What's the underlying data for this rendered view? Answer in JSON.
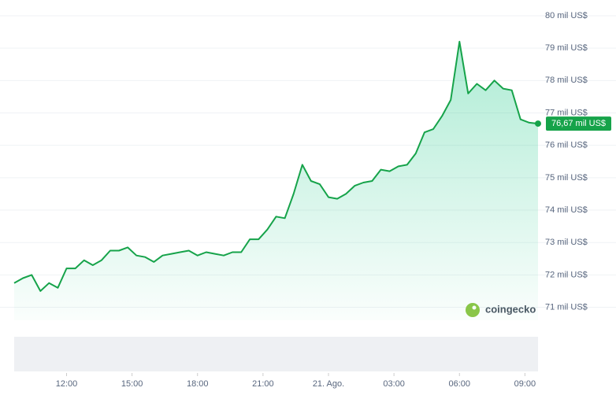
{
  "chart_data": {
    "type": "line",
    "x": [
      9.6,
      10.0,
      10.4,
      10.8,
      11.2,
      11.6,
      12.0,
      12.4,
      12.8,
      13.2,
      13.6,
      14.0,
      14.4,
      14.8,
      15.2,
      15.6,
      16.0,
      16.4,
      16.8,
      17.2,
      17.6,
      18.0,
      18.4,
      18.8,
      19.2,
      19.6,
      20.0,
      20.4,
      20.8,
      21.2,
      21.6,
      22.0,
      22.4,
      22.8,
      23.2,
      23.6,
      24.0,
      24.4,
      24.8,
      25.2,
      25.6,
      26.0,
      26.4,
      26.8,
      27.2,
      27.6,
      28.0,
      28.4,
      28.8,
      29.2,
      29.6,
      30.0,
      30.4,
      30.8,
      31.2,
      31.6,
      32.0,
      32.4,
      32.8,
      33.2,
      33.6
    ],
    "series": [
      {
        "color": "#16a34a",
        "values": [
          71.75,
          71.9,
          72.0,
          71.5,
          71.75,
          71.6,
          72.2,
          72.2,
          72.45,
          72.3,
          72.45,
          72.75,
          72.75,
          72.85,
          72.6,
          72.55,
          72.4,
          72.6,
          72.65,
          72.7,
          72.75,
          72.6,
          72.7,
          72.65,
          72.6,
          72.7,
          72.7,
          73.1,
          73.1,
          73.4,
          73.8,
          73.75,
          74.5,
          75.4,
          74.9,
          74.8,
          74.4,
          74.35,
          74.5,
          74.75,
          74.85,
          74.9,
          75.25,
          75.2,
          75.35,
          75.4,
          75.75,
          76.4,
          76.5,
          76.9,
          77.4,
          79.2,
          77.6,
          77.9,
          77.7,
          78.0,
          77.75,
          77.7,
          76.8,
          76.7,
          76.67
        ],
        "value_labels": [
          null,
          null,
          null,
          null,
          null,
          null,
          null,
          null,
          null,
          null,
          null,
          null,
          null,
          null,
          null,
          null,
          null,
          null,
          null,
          null,
          null,
          null,
          null,
          null,
          null,
          null,
          null,
          null,
          null,
          null,
          null,
          null,
          null,
          null,
          null,
          null,
          null,
          null,
          null,
          null,
          null,
          null,
          null,
          null,
          null,
          null,
          null,
          null,
          null,
          null,
          null,
          null,
          null,
          null,
          null,
          null,
          null,
          null,
          null,
          null,
          "76,67 mil US$"
        ]
      }
    ],
    "xlim": [
      9.6,
      33.6
    ],
    "xticks": [
      {
        "value": 12,
        "label": "12:00"
      },
      {
        "value": 15,
        "label": "15:00"
      },
      {
        "value": 18,
        "label": "18:00"
      },
      {
        "value": 21,
        "label": "21:00"
      },
      {
        "value": 24,
        "label": "21. Ago."
      },
      {
        "value": 27,
        "label": "03:00"
      },
      {
        "value": 30,
        "label": "06:00"
      },
      {
        "value": 33,
        "label": "09:00"
      }
    ],
    "ylim": [
      70.6,
      80
    ],
    "yticks": [
      {
        "value": 71,
        "label": "71 mil US$"
      },
      {
        "value": 72,
        "label": "72 mil US$"
      },
      {
        "value": 73,
        "label": "73 mil US$"
      },
      {
        "value": 74,
        "label": "74 mil US$"
      },
      {
        "value": 75,
        "label": "75 mil US$"
      },
      {
        "value": 76,
        "label": "76 mil US$"
      },
      {
        "value": 77,
        "label": "77 mil US$"
      },
      {
        "value": 78,
        "label": "78 mil US$"
      },
      {
        "value": 79,
        "label": "79 mil US$"
      },
      {
        "value": 80,
        "label": "80 mil US$"
      }
    ],
    "grid": true,
    "watermark": "coingecko"
  }
}
